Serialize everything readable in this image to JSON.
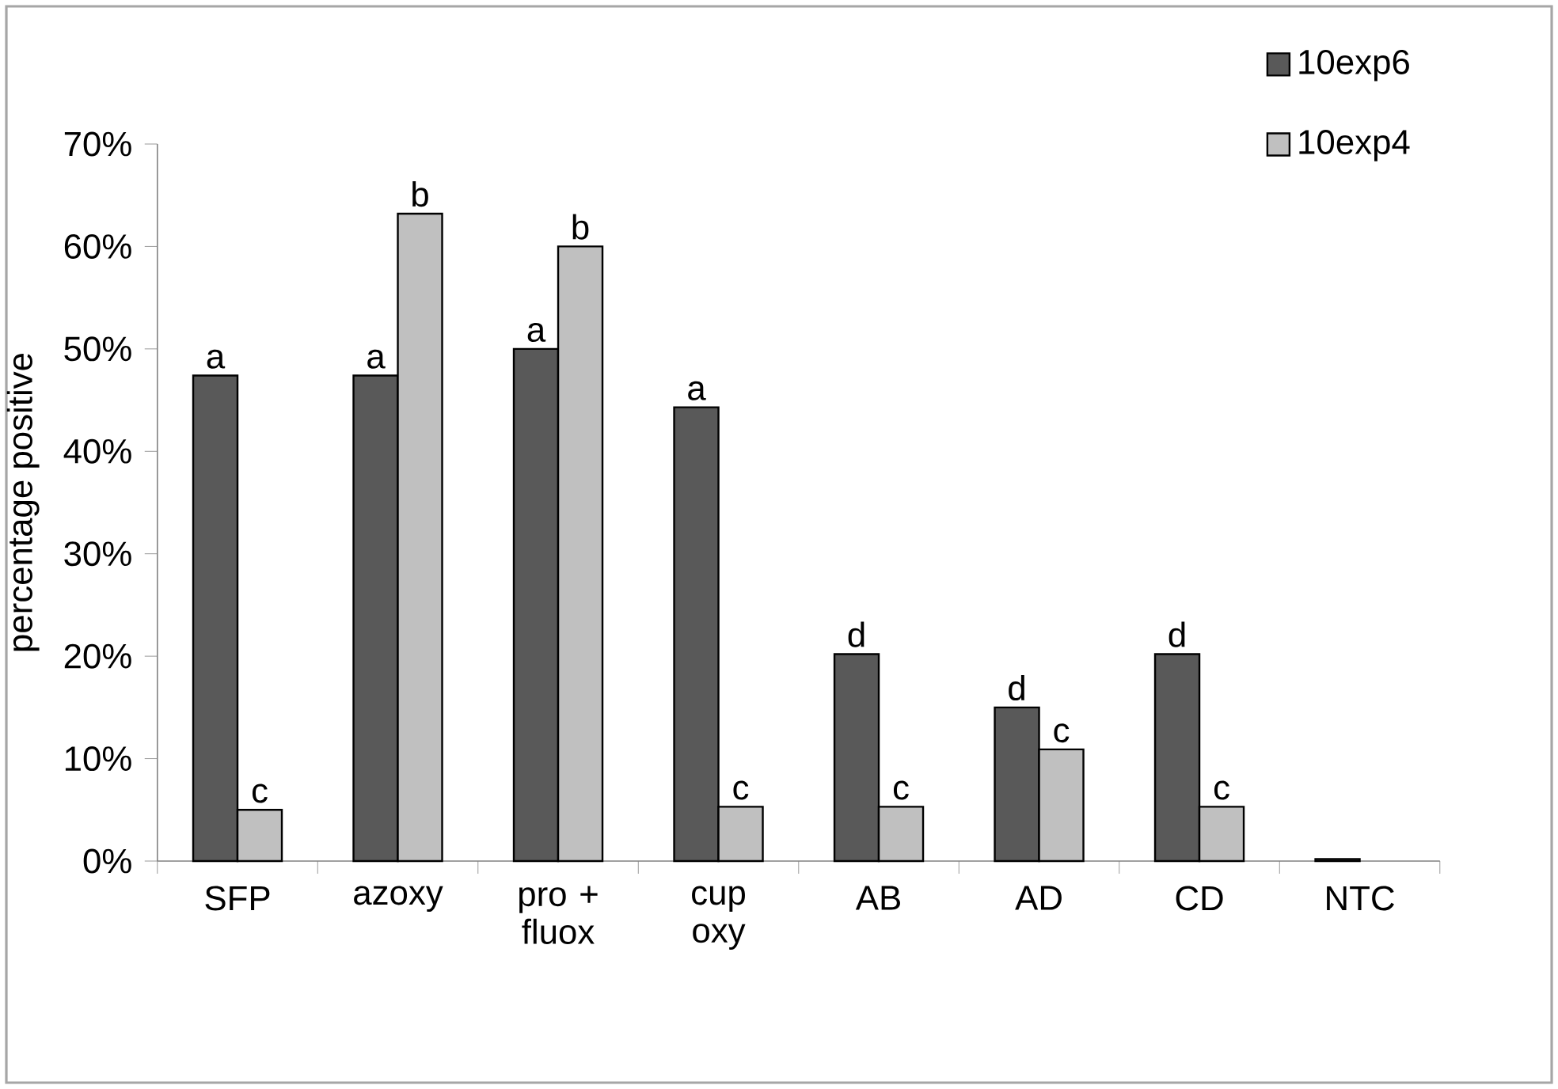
{
  "chart_data": {
    "type": "bar",
    "ylabel": "percentage positive",
    "categories": [
      "SFP",
      "azoxy",
      "pro + fluox",
      "cup oxy",
      "AB",
      "AD",
      "CD",
      "NTC"
    ],
    "series": [
      {
        "name": "10exp6",
        "color": "#595959",
        "values": [
          47.4,
          47.4,
          50,
          44.3,
          20.2,
          15,
          20.2,
          0.2
        ]
      },
      {
        "name": "10exp4",
        "color": "#c0c0c0",
        "values": [
          5,
          63.2,
          60,
          5.3,
          5.3,
          10.9,
          5.3,
          null
        ]
      }
    ],
    "ylim": [
      0,
      70
    ],
    "yticks": [
      {
        "value": 0,
        "label": "0%"
      },
      {
        "value": 10,
        "label": "10%"
      },
      {
        "value": 20,
        "label": "20%"
      },
      {
        "value": 30,
        "label": "30%"
      },
      {
        "value": 40,
        "label": "40%"
      },
      {
        "value": 50,
        "label": "50%"
      },
      {
        "value": 60,
        "label": "60%"
      },
      {
        "value": 70,
        "label": "70%"
      }
    ],
    "grid": false,
    "legend": "top right",
    "annotations": [
      {
        "text": "a",
        "x": "SFP",
        "y": 47.4
      },
      {
        "text": "c",
        "x": "SFP",
        "y": 5
      },
      {
        "text": "a",
        "x": "azoxy",
        "y": 47.4
      },
      {
        "text": "b",
        "x": "azoxy",
        "y": 63.2
      },
      {
        "text": "a",
        "x": "pro + fluox",
        "y": 50
      },
      {
        "text": "b",
        "x": "pro + fluox",
        "y": 60
      },
      {
        "text": "a",
        "x": "cup oxy",
        "y": 44.3
      },
      {
        "text": "c",
        "x": "cup oxy",
        "y": 5.3
      },
      {
        "text": "d",
        "x": "AB",
        "y": 20.2
      },
      {
        "text": "c",
        "x": "AB",
        "y": 5.3
      },
      {
        "text": "d",
        "x": "AD",
        "y": 15
      },
      {
        "text": "c",
        "x": "AD",
        "y": 10.9
      },
      {
        "text": "d",
        "x": "CD",
        "y": 20.2
      },
      {
        "text": "c",
        "x": "CD",
        "y": 5.3
      }
    ]
  }
}
